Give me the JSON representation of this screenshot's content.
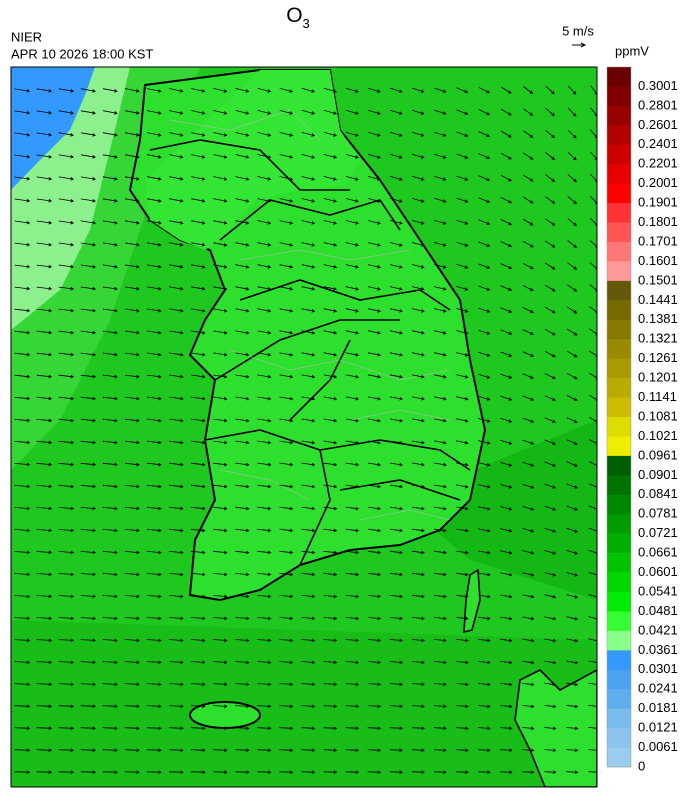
{
  "header": {
    "title": "O",
    "title_sub": "3",
    "agency": "NIER",
    "datetime": "APR 10 2026 18:00 KST"
  },
  "wind_scale": {
    "label": "5 m/s"
  },
  "legend": {
    "unit": "ppmV",
    "labels": [
      0.3001,
      0.2801,
      0.2601,
      0.2401,
      0.2201,
      0.2001,
      0.1901,
      0.1801,
      0.1701,
      0.1601,
      0.1501,
      0.1441,
      0.1381,
      0.1321,
      0.1261,
      0.1201,
      0.1141,
      0.1081,
      0.1021,
      0.0961,
      0.0901,
      0.0841,
      0.0781,
      0.0721,
      0.0661,
      0.0601,
      0.0541,
      0.0481,
      0.0421,
      0.0361,
      0.0301,
      0.0241,
      0.0181,
      0.0121,
      0.0061,
      0
    ],
    "colors": [
      "#6b0000",
      "#800000",
      "#990000",
      "#b30000",
      "#cc0000",
      "#e60000",
      "#ff0000",
      "#ff3333",
      "#ff5555",
      "#ff7777",
      "#ff9999",
      "#66580a",
      "#776a00",
      "#887a00",
      "#998a00",
      "#aa9a00",
      "#bbaa00",
      "#ccbb00",
      "#dddd00",
      "#eeee00",
      "#005f00",
      "#007300",
      "#008800",
      "#009c00",
      "#00b000",
      "#00c400",
      "#00d800",
      "#00ec00",
      "#33ff33",
      "#88ff88",
      "#3399ff",
      "#4aa2f0",
      "#5eaded",
      "#78bbee",
      "#8cc4ee",
      "#99ccee"
    ]
  }
}
